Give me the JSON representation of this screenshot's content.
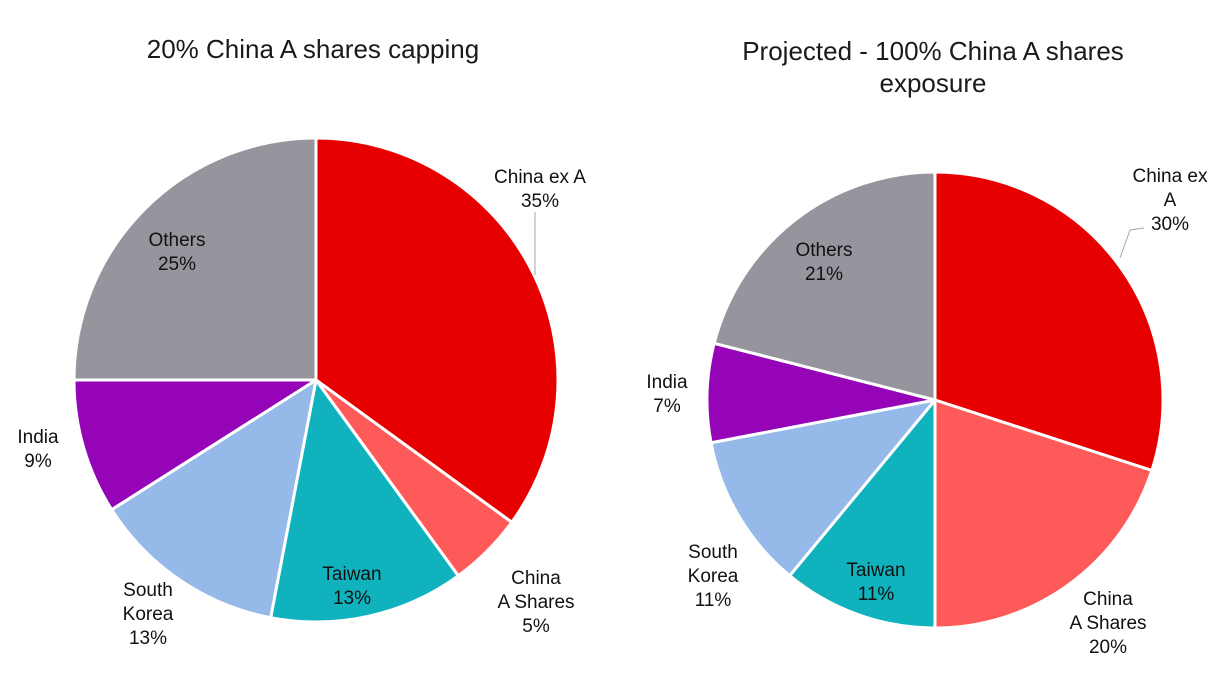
{
  "chart_data": [
    {
      "type": "pie",
      "title": [
        "20% China A shares capping"
      ],
      "slices": [
        {
          "name": "China ex A",
          "label_lines": [
            "China ex A"
          ],
          "value": 35,
          "value_label": "35%",
          "color": "#e60000"
        },
        {
          "name": "China A Shares",
          "label_lines": [
            "China",
            "A Shares"
          ],
          "value": 5,
          "value_label": "5%",
          "color": "#ff5a5a"
        },
        {
          "name": "Taiwan",
          "label_lines": [
            "Taiwan"
          ],
          "value": 13,
          "value_label": "13%",
          "color": "#10b2bd"
        },
        {
          "name": "South Korea",
          "label_lines": [
            "South",
            "Korea"
          ],
          "value": 13,
          "value_label": "13%",
          "color": "#95b9e8"
        },
        {
          "name": "India",
          "label_lines": [
            "India"
          ],
          "value": 9,
          "value_label": "9%",
          "color": "#9504b7"
        },
        {
          "name": "Others",
          "label_lines": [
            "Others"
          ],
          "value": 25,
          "value_label": "25%",
          "color": "#96959e"
        }
      ]
    },
    {
      "type": "pie",
      "title": [
        "Projected - 100% China A shares",
        "exposure"
      ],
      "slices": [
        {
          "name": "China ex A",
          "label_lines": [
            "China ex",
            "A"
          ],
          "value": 30,
          "value_label": "30%",
          "color": "#e60000"
        },
        {
          "name": "China A Shares",
          "label_lines": [
            "China",
            "A Shares"
          ],
          "value": 20,
          "value_label": "20%",
          "color": "#ff5a5a"
        },
        {
          "name": "Taiwan",
          "label_lines": [
            "Taiwan"
          ],
          "value": 11,
          "value_label": "11%",
          "color": "#10b2bd"
        },
        {
          "name": "South Korea",
          "label_lines": [
            "South",
            "Korea"
          ],
          "value": 11,
          "value_label": "11%",
          "color": "#95b9e8"
        },
        {
          "name": "India",
          "label_lines": [
            "India"
          ],
          "value": 7,
          "value_label": "7%",
          "color": "#9504b7"
        },
        {
          "name": "Others",
          "label_lines": [
            "Others"
          ],
          "value": 21,
          "value_label": "21%",
          "color": "#96959e"
        }
      ]
    }
  ]
}
